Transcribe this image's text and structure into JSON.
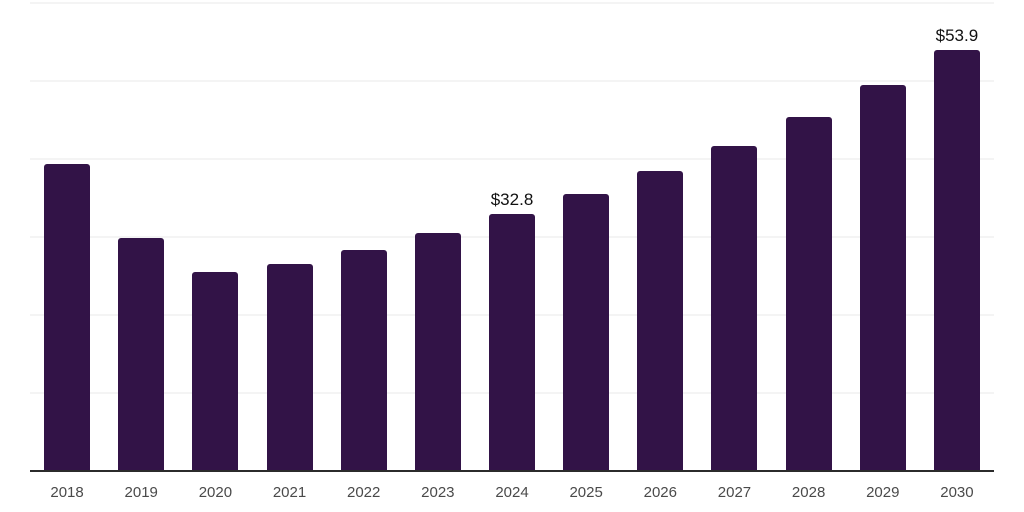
{
  "chart_data": {
    "type": "bar",
    "title": "",
    "xlabel": "",
    "ylabel": "",
    "categories": [
      "2018",
      "2019",
      "2020",
      "2021",
      "2022",
      "2023",
      "2024",
      "2025",
      "2026",
      "2027",
      "2028",
      "2029",
      "2030"
    ],
    "values": [
      39.2,
      29.8,
      25.4,
      26.4,
      28.2,
      30.4,
      32.8,
      35.4,
      38.3,
      41.5,
      45.2,
      49.3,
      53.9
    ],
    "annotations": [
      {
        "category": "2024",
        "text": "$32.8"
      },
      {
        "category": "2030",
        "text": "$53.9"
      }
    ],
    "ylim": [
      0,
      60
    ],
    "gridline_step": 10,
    "grid": true,
    "legend_position": "none",
    "colors": {
      "bar": "#321347",
      "axis_line": "#2b2b2b",
      "gridline": "#f4f4f4",
      "tick_label": "#4a4a4a",
      "annotation_text": "#111111",
      "background": "#ffffff"
    }
  }
}
